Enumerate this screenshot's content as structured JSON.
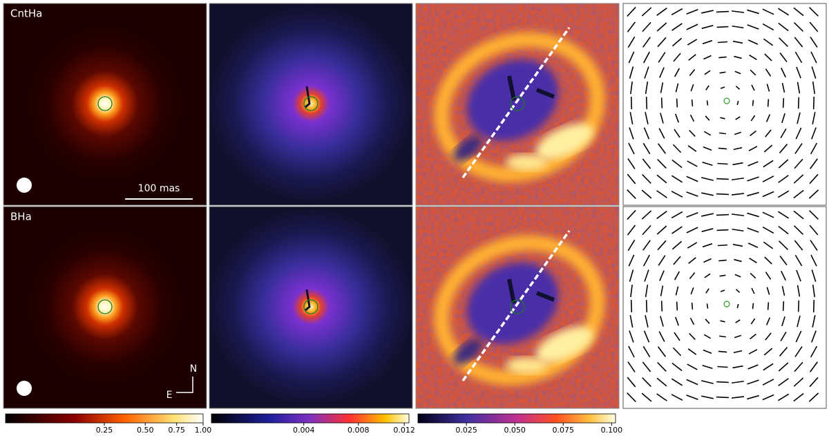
{
  "panels": {
    "rows": [
      {
        "label": "CntHa"
      },
      {
        "label": "BHa"
      }
    ],
    "scale_bar": "100 mas",
    "compass": {
      "north": "N",
      "east": "E"
    }
  },
  "colorbars": [
    {
      "lim": [
        0,
        1
      ],
      "stretch": 0.5,
      "ticks": [
        0.25,
        {
          "value": 0.5,
          "label": "0.50"
        },
        0.75,
        {
          "value": 1,
          "label": "1.00"
        }
      ]
    },
    {
      "lim": [
        0,
        0.01244
      ],
      "stretch": 0.67,
      "ticks": [
        0.004,
        0.008,
        0.012
      ]
    },
    {
      "lim": [
        0,
        0.102
      ],
      "stretch": 1,
      "ticks": [
        0.025,
        {
          "value": 0.05,
          "label": "0.050"
        },
        0.075,
        {
          "value": 0.1,
          "label": "0.100"
        }
      ]
    }
  ]
}
